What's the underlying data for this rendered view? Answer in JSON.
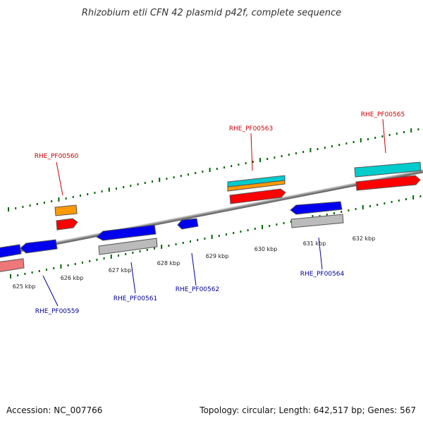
{
  "title": "Rhizobium etli CFN 42 plasmid p42f, complete sequence",
  "footer": {
    "accession": "Accession: NC_007766",
    "topology": "Topology: circular; Length: 642,517 bp; Genes: 567"
  },
  "ticks": [
    "625 kbp",
    "626 kbp",
    "627 kbp",
    "628 kbp",
    "629 kbp",
    "630 kbp",
    "631 kbp",
    "632 kbp"
  ],
  "genes_forward": [
    "RHE_PF00560",
    "RHE_PF00563",
    "RHE_PF00565"
  ],
  "genes_reverse": [
    "RHE_PF00559",
    "RHE_PF00561",
    "RHE_PF00562",
    "RHE_PF00564"
  ],
  "colors": {
    "orange": "#ff9900",
    "red": "#ff0000",
    "cyan": "#00cccc",
    "blue": "#0000ee",
    "gray": "#bbbbbb",
    "pink": "#ee7777",
    "green_dots": "#006600",
    "backbone": "#888888",
    "label_red": "#cc0000",
    "label_blue": "#000099"
  }
}
